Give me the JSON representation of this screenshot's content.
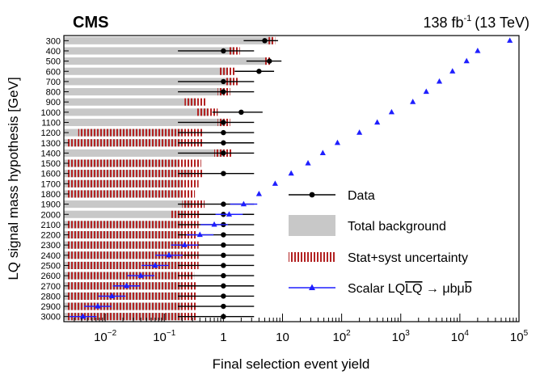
{
  "header": {
    "experiment": "CMS",
    "lumi_value": "138 fb",
    "lumi_exponent": "-1",
    "energy": "(13 TeV)"
  },
  "chart_data": {
    "type": "scatter",
    "xlabel": "Final selection event yield",
    "ylabel": "LQ signal mass hypothesis [GeV]",
    "xscale": "log",
    "xlim": [
      0.002,
      100000
    ],
    "x_ticks": [
      {
        "value": 0.01,
        "base": "10",
        "exp": "−2"
      },
      {
        "value": 0.1,
        "base": "10",
        "exp": "−1"
      },
      {
        "value": 1,
        "base": "1",
        "exp": ""
      },
      {
        "value": 10,
        "base": "10",
        "exp": ""
      },
      {
        "value": 100,
        "base": "10",
        "exp": "2"
      },
      {
        "value": 1000,
        "base": "10",
        "exp": "3"
      },
      {
        "value": 10000,
        "base": "10",
        "exp": "4"
      },
      {
        "value": 100000,
        "base": "10",
        "exp": "5"
      }
    ],
    "categories": [
      "300",
      "400",
      "500",
      "600",
      "700",
      "800",
      "900",
      "1000",
      "1100",
      "1200",
      "1300",
      "1400",
      "1500",
      "1600",
      "1700",
      "1800",
      "1900",
      "2000",
      "2100",
      "2200",
      "2300",
      "2400",
      "2500",
      "2600",
      "2700",
      "2800",
      "2900",
      "3000"
    ],
    "legend": {
      "placement": "center-right",
      "entries": [
        {
          "label": "Data",
          "style": "data"
        },
        {
          "label": "Total background",
          "style": "background"
        },
        {
          "label": "Stat+syst uncertainty",
          "style": "uncertainty"
        },
        {
          "label_main": "Scalar LQ",
          "label_bar": "LQ",
          "label_arrow": "→ μbμ",
          "label_bbar": "b",
          "style": "signal"
        }
      ]
    },
    "series": [
      {
        "name": "Data",
        "style": "data",
        "values": [
          5,
          1,
          6,
          4,
          1,
          1,
          null,
          2,
          1,
          1,
          1,
          1,
          null,
          1,
          null,
          null,
          1,
          1,
          1,
          1,
          1,
          1,
          1,
          1,
          1,
          1,
          1,
          1
        ],
        "err_low": [
          2.8,
          0.83,
          3.55,
          2.45,
          0.83,
          0.83,
          null,
          1.35,
          0.83,
          0.83,
          0.83,
          0.83,
          null,
          0.83,
          null,
          null,
          0.83,
          0.83,
          0.83,
          0.83,
          0.83,
          0.83,
          0.83,
          0.83,
          0.83,
          0.83,
          0.83,
          0.83
        ],
        "err_high": [
          3.4,
          2.3,
          3.6,
          3.2,
          2.3,
          2.3,
          null,
          2.6,
          2.3,
          2.3,
          2.3,
          2.3,
          null,
          2.3,
          null,
          null,
          2.3,
          2.3,
          2.3,
          2.3,
          2.3,
          2.3,
          2.3,
          2.3,
          2.3,
          2.3,
          2.3,
          2.3
        ]
      },
      {
        "name": "Total background",
        "style": "background",
        "values": [
          6.5,
          1.5,
          5.4,
          1.2,
          1.4,
          1.0,
          0.35,
          0.55,
          1.0,
          0.21,
          0.2,
          1.0,
          0.17,
          0.28,
          0.21,
          0.2,
          0.28,
          0.23,
          0.21,
          0.2,
          0.2,
          0.2,
          0.2,
          0.18,
          0.2,
          0.2,
          0.2,
          0.2
        ]
      },
      {
        "name": "Stat+syst uncertainty",
        "style": "uncertainty",
        "low": [
          5.8,
          1.2,
          4.8,
          0.85,
          1.1,
          0.8,
          0.22,
          0.35,
          0.8,
          0.0035,
          0.0022,
          0.7,
          0.0022,
          0.0022,
          0.0022,
          0.0022,
          0.2,
          0.13,
          0.0022,
          0.0022,
          0.0022,
          0.0022,
          0.0022,
          0.0022,
          0.0022,
          0.0022,
          0.0022,
          0.0022
        ],
        "high": [
          7.5,
          1.9,
          6.2,
          1.6,
          1.8,
          1.3,
          0.5,
          0.8,
          1.3,
          0.45,
          0.45,
          1.4,
          0.42,
          0.45,
          0.38,
          0.33,
          0.48,
          0.4,
          0.38,
          0.35,
          0.38,
          0.38,
          0.38,
          0.32,
          0.36,
          0.36,
          0.36,
          0.36
        ]
      },
      {
        "name": "Scalar LQ",
        "style": "signal",
        "values": [
          70000,
          20000,
          13000,
          7500,
          4500,
          2700,
          1600,
          700,
          400,
          200,
          85,
          48,
          27,
          14,
          7.5,
          4.0,
          2.2,
          1.25,
          0.7,
          0.4,
          0.22,
          0.12,
          0.07,
          0.04,
          0.023,
          0.013,
          0.0075,
          0.0042
        ]
      }
    ]
  }
}
